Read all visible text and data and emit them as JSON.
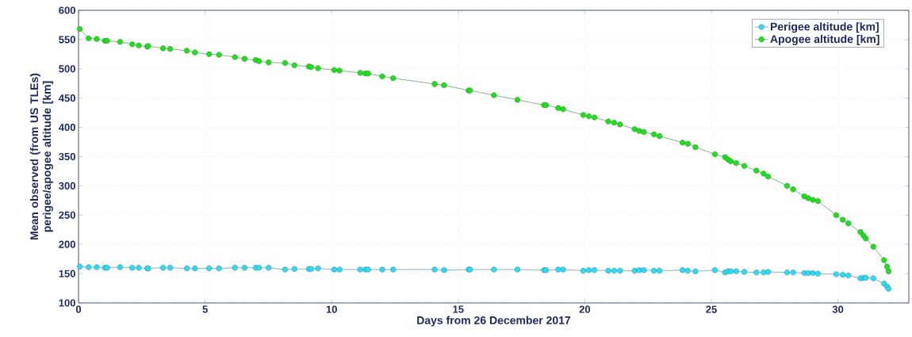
{
  "chart_data": {
    "type": "line",
    "xlabel": "Days from 26 December 2017",
    "ylabel": "Mean observed (from US TLEs) perigee/apogee altitude [km]",
    "xlim": [
      0,
      32.8
    ],
    "ylim": [
      100,
      600
    ],
    "xticks": [
      0,
      5,
      10,
      15,
      20,
      25,
      30
    ],
    "yticks": [
      100,
      150,
      200,
      250,
      300,
      350,
      400,
      450,
      500,
      550,
      600
    ],
    "grid": true,
    "legend": "top right",
    "marker": "circle",
    "line_style": "solid",
    "series": [
      {
        "name": "Perigee altitude [km]",
        "color": "#33d8f2",
        "x": [
          0.05,
          0.4,
          0.72,
          1.04,
          1.13,
          1.64,
          2.12,
          2.38,
          2.72,
          2.75,
          3.34,
          3.62,
          4.28,
          4.6,
          5.16,
          5.55,
          6.18,
          6.56,
          7.0,
          7.13,
          7.51,
          8.16,
          8.53,
          9.1,
          9.19,
          9.46,
          10.1,
          10.31,
          11.13,
          11.34,
          11.44,
          12.0,
          12.43,
          14.07,
          14.44,
          15.41,
          15.47,
          16.41,
          17.34,
          18.39,
          18.47,
          18.95,
          19.14,
          19.94,
          20.16,
          20.38,
          20.93,
          21.16,
          21.39,
          21.97,
          22.15,
          22.33,
          22.73,
          22.95,
          23.86,
          24.07,
          24.37,
          25.14,
          25.54,
          25.66,
          25.77,
          25.98,
          26.3,
          26.78,
          27.06,
          27.24,
          27.99,
          28.23,
          28.67,
          28.83,
          29.01,
          29.21,
          29.93,
          30.19,
          30.41,
          30.89,
          31.01,
          31.1,
          31.4,
          31.82,
          31.94,
          32.0
        ],
        "values": [
          162,
          161,
          161,
          160,
          160,
          161,
          160,
          160,
          159,
          159,
          160,
          160,
          159,
          159,
          159,
          159,
          160,
          160,
          160,
          160,
          160,
          157,
          158,
          158,
          158,
          159,
          157,
          157,
          157,
          157,
          157,
          157,
          157,
          157,
          156,
          157,
          157,
          157,
          157,
          156,
          156,
          157,
          157,
          155,
          156,
          156,
          155,
          155,
          155,
          155,
          156,
          156,
          155,
          155,
          156,
          155,
          154,
          156,
          152,
          154,
          154,
          154,
          153,
          152,
          152,
          153,
          152,
          152,
          151,
          151,
          151,
          150,
          149,
          148,
          147,
          142,
          143,
          143,
          142,
          133,
          128,
          124
        ]
      },
      {
        "name": "Apogee altitude [km]",
        "color": "#22dd22",
        "x": [
          0.05,
          0.4,
          0.72,
          1.04,
          1.13,
          1.64,
          2.12,
          2.38,
          2.72,
          2.75,
          3.34,
          3.62,
          4.28,
          4.6,
          5.16,
          5.55,
          6.18,
          6.56,
          7.0,
          7.13,
          7.51,
          8.16,
          8.53,
          9.1,
          9.19,
          9.46,
          10.1,
          10.31,
          11.13,
          11.34,
          11.44,
          12.0,
          12.43,
          14.07,
          14.44,
          15.41,
          15.47,
          16.41,
          17.34,
          18.39,
          18.47,
          18.95,
          19.14,
          19.94,
          20.16,
          20.38,
          20.93,
          21.16,
          21.39,
          21.97,
          22.15,
          22.33,
          22.73,
          22.95,
          23.86,
          24.07,
          24.37,
          25.14,
          25.54,
          25.66,
          25.77,
          25.98,
          26.3,
          26.78,
          27.06,
          27.24,
          27.99,
          28.23,
          28.67,
          28.83,
          29.01,
          29.21,
          29.93,
          30.19,
          30.41,
          30.89,
          31.01,
          31.1,
          31.4,
          31.82,
          31.94,
          32.0
        ],
        "values": [
          568,
          552,
          551,
          548,
          548,
          546,
          542,
          540,
          538,
          539,
          535,
          534,
          531,
          528,
          525,
          524,
          520,
          517,
          515,
          513,
          511,
          510,
          506,
          504,
          503,
          501,
          498,
          497,
          493,
          492,
          492,
          487,
          484,
          474,
          472,
          463,
          463,
          455,
          447,
          438,
          438,
          433,
          431,
          421,
          419,
          417,
          410,
          408,
          405,
          397,
          394,
          392,
          388,
          385,
          374,
          372,
          366,
          354,
          349,
          345,
          342,
          339,
          334,
          326,
          321,
          316,
          300,
          294,
          282,
          279,
          276,
          274,
          250,
          242,
          236,
          221,
          215,
          210,
          196,
          173,
          162,
          154
        ]
      }
    ]
  }
}
